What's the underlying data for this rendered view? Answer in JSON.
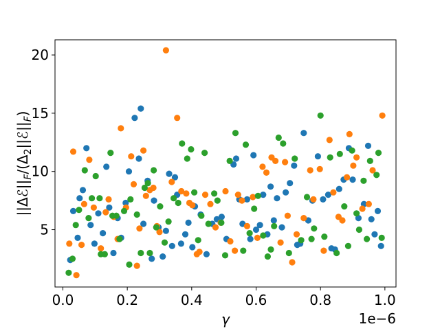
{
  "chart_data": {
    "type": "scatter",
    "title": "",
    "xlabel": "γ",
    "ylabel": "||Δℰ||F/(Δ2||ℰ||F)",
    "x_offset_label": "1e−6",
    "x_scale": 1e-06,
    "xlim": [
      -0.0245,
      1.0345
    ],
    "ylim": [
      0.08,
      21.3
    ],
    "x_ticks": [
      0.0,
      0.2,
      0.4,
      0.6,
      0.8,
      1.0
    ],
    "x_tick_labels": [
      "0.0",
      "0.2",
      "0.4",
      "0.6",
      "0.8",
      "1.0"
    ],
    "y_ticks": [
      5,
      10,
      15,
      20
    ],
    "y_tick_labels": [
      "5",
      "10",
      "15",
      "20"
    ],
    "grid": false,
    "legend": "none",
    "series": [
      {
        "color": "#1f77b4",
        "points": [
          [
            0.023,
            2.4
          ],
          [
            0.032,
            6.6
          ],
          [
            0.046,
            4.3
          ],
          [
            0.052,
            7.7
          ],
          [
            0.062,
            8.4
          ],
          [
            0.073,
            12.0
          ],
          [
            0.086,
            5.4
          ],
          [
            0.098,
            3.8
          ],
          [
            0.11,
            6.4
          ],
          [
            0.124,
            4.7
          ],
          [
            0.135,
            10.4
          ],
          [
            0.144,
            6.9
          ],
          [
            0.157,
            3.0
          ],
          [
            0.17,
            6.0
          ],
          [
            0.181,
            4.3
          ],
          [
            0.195,
            7.3
          ],
          [
            0.205,
            10.0
          ],
          [
            0.223,
            14.6
          ],
          [
            0.236,
            11.1
          ],
          [
            0.242,
            15.4
          ],
          [
            0.25,
            5.5
          ],
          [
            0.263,
            9.2
          ],
          [
            0.276,
            2.5
          ],
          [
            0.283,
            7.5
          ],
          [
            0.297,
            5.2
          ],
          [
            0.31,
            2.7
          ],
          [
            0.32,
            4.9
          ],
          [
            0.33,
            9.8
          ],
          [
            0.339,
            3.6
          ],
          [
            0.348,
            9.5
          ],
          [
            0.355,
            8.0
          ],
          [
            0.367,
            3.8
          ],
          [
            0.38,
            4.6
          ],
          [
            0.39,
            5.6
          ],
          [
            0.402,
            3.5
          ],
          [
            0.41,
            7.0
          ],
          [
            0.428,
            6.3
          ],
          [
            0.446,
            2.9
          ],
          [
            0.464,
            5.5
          ],
          [
            0.478,
            5.9
          ],
          [
            0.493,
            6.1
          ],
          [
            0.508,
            4.2
          ],
          [
            0.53,
            10.6
          ],
          [
            0.538,
            11.1
          ],
          [
            0.548,
            7.6
          ],
          [
            0.558,
            5.5
          ],
          [
            0.572,
            7.6
          ],
          [
            0.582,
            4.2
          ],
          [
            0.592,
            11.4
          ],
          [
            0.6,
            5.0
          ],
          [
            0.612,
            5.4
          ],
          [
            0.622,
            8.0
          ],
          [
            0.635,
            4.6
          ],
          [
            0.645,
            8.7
          ],
          [
            0.655,
            5.8
          ],
          [
            0.665,
            7.7
          ],
          [
            0.68,
            5.2
          ],
          [
            0.692,
            8.2
          ],
          [
            0.705,
            9.0
          ],
          [
            0.718,
            10.5
          ],
          [
            0.728,
            3.7
          ],
          [
            0.737,
            3.8
          ],
          [
            0.748,
            13.3
          ],
          [
            0.762,
            5.8
          ],
          [
            0.775,
            7.5
          ],
          [
            0.792,
            11.3
          ],
          [
            0.808,
            7.6
          ],
          [
            0.824,
            8.0
          ],
          [
            0.834,
            3.4
          ],
          [
            0.845,
            3.3
          ],
          [
            0.858,
            8.5
          ],
          [
            0.872,
            9.3
          ],
          [
            0.888,
            12.0
          ],
          [
            0.9,
            9.3
          ],
          [
            0.918,
            6.0
          ],
          [
            0.935,
            7.2
          ],
          [
            0.948,
            12.2
          ],
          [
            0.958,
            5.9
          ],
          [
            0.968,
            4.6
          ],
          [
            0.978,
            6.6
          ],
          [
            0.988,
            3.6
          ]
        ]
      },
      {
        "color": "#ff7f0e",
        "points": [
          [
            0.02,
            3.8
          ],
          [
            0.032,
            11.7
          ],
          [
            0.042,
            1.1
          ],
          [
            0.058,
            3.7
          ],
          [
            0.066,
            7.2
          ],
          [
            0.082,
            11.0
          ],
          [
            0.096,
            6.9
          ],
          [
            0.118,
            3.4
          ],
          [
            0.133,
            6.5
          ],
          [
            0.142,
            7.6
          ],
          [
            0.158,
            6.1
          ],
          [
            0.17,
            4.2
          ],
          [
            0.18,
            13.7
          ],
          [
            0.196,
            6.9
          ],
          [
            0.212,
            11.3
          ],
          [
            0.22,
            8.9
          ],
          [
            0.23,
            1.9
          ],
          [
            0.238,
            5.1
          ],
          [
            0.25,
            11.8
          ],
          [
            0.258,
            7.9
          ],
          [
            0.27,
            8.4
          ],
          [
            0.281,
            8.6
          ],
          [
            0.292,
            5.3
          ],
          [
            0.3,
            4.8
          ],
          [
            0.32,
            20.4
          ],
          [
            0.338,
            9.1
          ],
          [
            0.355,
            14.6
          ],
          [
            0.368,
            8.3
          ],
          [
            0.383,
            8.1
          ],
          [
            0.393,
            7.3
          ],
          [
            0.402,
            7.1
          ],
          [
            0.416,
            2.9
          ],
          [
            0.424,
            3.1
          ],
          [
            0.442,
            8.0
          ],
          [
            0.458,
            7.2
          ],
          [
            0.474,
            5.2
          ],
          [
            0.49,
            5.6
          ],
          [
            0.505,
            8.3
          ],
          [
            0.52,
            4.0
          ],
          [
            0.534,
            3.2
          ],
          [
            0.544,
            8.0
          ],
          [
            0.556,
            7.5
          ],
          [
            0.572,
            5.3
          ],
          [
            0.59,
            7.8
          ],
          [
            0.604,
            4.3
          ],
          [
            0.62,
            10.4
          ],
          [
            0.632,
            9.9
          ],
          [
            0.648,
            11.2
          ],
          [
            0.66,
            10.9
          ],
          [
            0.676,
            3.9
          ],
          [
            0.69,
            10.8
          ],
          [
            0.698,
            6.2
          ],
          [
            0.712,
            2.2
          ],
          [
            0.726,
            4.6
          ],
          [
            0.748,
            6.0
          ],
          [
            0.768,
            10.1
          ],
          [
            0.778,
            7.6
          ],
          [
            0.798,
            10.2
          ],
          [
            0.81,
            3.2
          ],
          [
            0.828,
            12.7
          ],
          [
            0.84,
            8.2
          ],
          [
            0.856,
            6.1
          ],
          [
            0.868,
            5.8
          ],
          [
            0.882,
            9.5
          ],
          [
            0.89,
            13.2
          ],
          [
            0.902,
            10.5
          ],
          [
            0.912,
            11.2
          ],
          [
            0.93,
            6.8
          ],
          [
            0.95,
            7.2
          ],
          [
            0.962,
            10.1
          ],
          [
            0.992,
            14.8
          ]
        ]
      },
      {
        "color": "#2ca02c",
        "points": [
          [
            0.018,
            1.3
          ],
          [
            0.03,
            2.5
          ],
          [
            0.04,
            5.4
          ],
          [
            0.05,
            6.7
          ],
          [
            0.068,
            10.1
          ],
          [
            0.08,
            6.0
          ],
          [
            0.09,
            7.7
          ],
          [
            0.102,
            9.6
          ],
          [
            0.114,
            7.7
          ],
          [
            0.118,
            2.9
          ],
          [
            0.13,
            2.9
          ],
          [
            0.148,
            11.6
          ],
          [
            0.154,
            6.2
          ],
          [
            0.166,
            6.2
          ],
          [
            0.176,
            4.2
          ],
          [
            0.19,
            6.6
          ],
          [
            0.206,
            2.0
          ],
          [
            0.21,
            7.6
          ],
          [
            0.23,
            6.3
          ],
          [
            0.242,
            3.0
          ],
          [
            0.254,
            8.6
          ],
          [
            0.264,
            9.0
          ],
          [
            0.27,
            3.0
          ],
          [
            0.282,
            10.1
          ],
          [
            0.29,
            5.2
          ],
          [
            0.302,
            7.0
          ],
          [
            0.316,
            3.9
          ],
          [
            0.328,
            5.7
          ],
          [
            0.344,
            7.7
          ],
          [
            0.358,
            7.3
          ],
          [
            0.37,
            12.4
          ],
          [
            0.386,
            11.1
          ],
          [
            0.398,
            11.9
          ],
          [
            0.408,
            8.2
          ],
          [
            0.42,
            4.1
          ],
          [
            0.43,
            6.2
          ],
          [
            0.44,
            11.6
          ],
          [
            0.452,
            5.5
          ],
          [
            0.47,
            8.1
          ],
          [
            0.48,
            7.5
          ],
          [
            0.492,
            5.6
          ],
          [
            0.504,
            2.8
          ],
          [
            0.518,
            10.9
          ],
          [
            0.536,
            13.3
          ],
          [
            0.56,
            3.2
          ],
          [
            0.568,
            12.3
          ],
          [
            0.58,
            4.7
          ],
          [
            0.594,
            6.8
          ],
          [
            0.606,
            7.9
          ],
          [
            0.622,
            4.5
          ],
          [
            0.636,
            2.7
          ],
          [
            0.646,
            3.3
          ],
          [
            0.656,
            5.3
          ],
          [
            0.67,
            12.9
          ],
          [
            0.684,
            12.4
          ],
          [
            0.702,
            3.0
          ],
          [
            0.72,
            11.1
          ],
          [
            0.74,
            4.1
          ],
          [
            0.758,
            7.8
          ],
          [
            0.772,
            4.2
          ],
          [
            0.78,
            5.1
          ],
          [
            0.8,
            14.8
          ],
          [
            0.812,
            4.4
          ],
          [
            0.83,
            11.2
          ],
          [
            0.85,
            3.0
          ],
          [
            0.86,
            11.5
          ],
          [
            0.874,
            7.0
          ],
          [
            0.886,
            3.6
          ],
          [
            0.898,
            11.8
          ],
          [
            0.912,
            6.4
          ],
          [
            0.92,
            5.0
          ],
          [
            0.934,
            9.2
          ],
          [
            0.944,
            4.2
          ],
          [
            0.954,
            10.9
          ],
          [
            0.974,
            9.7
          ],
          [
            0.98,
            11.6
          ],
          [
            0.99,
            4.3
          ]
        ]
      }
    ]
  }
}
